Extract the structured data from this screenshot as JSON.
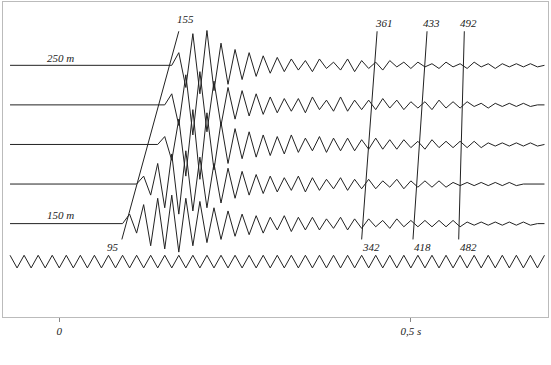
{
  "chart_data": {
    "type": "line",
    "x": [
      -0.07,
      -0.06,
      -0.05,
      -0.04,
      -0.03,
      -0.02,
      -0.01,
      0,
      0.01,
      0.02,
      0.03,
      0.04,
      0.05,
      0.06,
      0.07,
      0.08,
      0.09,
      0.1,
      0.11,
      0.12,
      0.13,
      0.14,
      0.15,
      0.16,
      0.17,
      0.18,
      0.19,
      0.2,
      0.21,
      0.22,
      0.23,
      0.24,
      0.25,
      0.26,
      0.27,
      0.28,
      0.29,
      0.3,
      0.31,
      0.32,
      0.33,
      0.34,
      0.35,
      0.36,
      0.37,
      0.38,
      0.39,
      0.4,
      0.41,
      0.42,
      0.43,
      0.44,
      0.45,
      0.46,
      0.47,
      0.48,
      0.49,
      0.5,
      0.51,
      0.52,
      0.53,
      0.54,
      0.55,
      0.56,
      0.57,
      0.58,
      0.59,
      0.6,
      0.61,
      0.62,
      0.63,
      0.64,
      0.65,
      0.66,
      0.67,
      0.68,
      0.69
    ],
    "series": [
      {
        "color": "#222222",
        "line_style": "solid",
        "values": [
          250,
          250,
          250,
          250,
          250,
          250,
          250,
          250,
          250,
          250,
          250,
          250,
          250,
          250,
          250,
          250,
          250,
          250,
          250,
          250,
          250,
          250,
          250,
          250,
          258,
          236,
          270,
          232,
          272,
          234,
          264,
          238,
          260,
          241,
          258,
          243,
          256,
          245,
          255,
          246,
          254,
          247,
          253,
          246,
          254,
          248,
          252,
          247,
          254,
          246,
          253,
          248,
          252,
          247,
          253,
          249,
          252,
          248,
          252,
          249,
          251,
          248,
          252,
          249,
          251,
          248,
          252,
          249,
          251,
          248,
          251,
          249,
          251,
          249,
          251,
          249,
          250
        ]
      },
      {
        "color": "#222222",
        "line_style": "solid",
        "values": [
          225,
          225,
          225,
          225,
          225,
          225,
          225,
          225,
          225,
          225,
          225,
          225,
          225,
          225,
          225,
          225,
          225,
          225,
          225,
          225,
          225,
          225,
          225,
          232,
          212,
          244,
          206,
          246,
          208,
          240,
          212,
          236,
          216,
          234,
          218,
          232,
          219,
          230,
          220,
          229,
          221,
          229,
          220,
          230,
          222,
          228,
          221,
          230,
          221,
          228,
          222,
          228,
          222,
          229,
          223,
          228,
          222,
          227,
          223,
          227,
          222,
          228,
          223,
          227,
          223,
          227,
          224,
          226,
          223,
          226,
          224,
          226,
          224,
          226,
          224,
          225,
          225
        ]
      },
      {
        "color": "#222222",
        "line_style": "solid",
        "values": [
          200,
          200,
          200,
          200,
          200,
          200,
          200,
          200,
          200,
          200,
          200,
          200,
          200,
          200,
          200,
          200,
          200,
          200,
          200,
          200,
          200,
          200,
          205,
          190,
          216,
          180,
          222,
          178,
          220,
          184,
          214,
          188,
          210,
          191,
          208,
          192,
          206,
          193,
          205,
          194,
          206,
          195,
          204,
          196,
          205,
          195,
          204,
          196,
          204,
          196,
          203,
          197,
          204,
          197,
          203,
          197,
          203,
          198,
          202,
          197,
          203,
          198,
          202,
          198,
          202,
          198,
          202,
          198,
          201,
          199,
          201,
          199,
          201,
          199,
          201,
          199,
          200
        ]
      },
      {
        "color": "#222222",
        "line_style": "solid",
        "values": [
          175,
          175,
          175,
          175,
          175,
          175,
          175,
          175,
          175,
          175,
          175,
          175,
          175,
          175,
          175,
          175,
          175,
          175,
          175,
          180,
          168,
          188,
          160,
          194,
          156,
          196,
          158,
          192,
          160,
          188,
          163,
          185,
          166,
          183,
          168,
          181,
          169,
          180,
          170,
          179,
          171,
          180,
          170,
          179,
          171,
          178,
          172,
          179,
          171,
          178,
          172,
          178,
          172,
          177,
          173,
          178,
          172,
          177,
          173,
          177,
          173,
          177,
          173,
          176,
          174,
          176,
          174,
          176,
          174,
          176,
          174,
          176,
          174,
          175,
          175,
          175,
          175
        ]
      },
      {
        "color": "#222222",
        "line_style": "solid",
        "values": [
          150,
          150,
          150,
          150,
          150,
          150,
          150,
          150,
          150,
          150,
          150,
          150,
          150,
          150,
          150,
          150,
          150,
          156,
          144,
          162,
          136,
          166,
          134,
          168,
          132,
          166,
          136,
          164,
          138,
          160,
          140,
          158,
          142,
          156,
          143,
          155,
          144,
          154,
          146,
          155,
          145,
          154,
          146,
          154,
          146,
          153,
          147,
          154,
          146,
          153,
          147,
          153,
          148,
          152,
          147,
          153,
          148,
          152,
          148,
          152,
          148,
          152,
          148,
          152,
          148,
          151,
          149,
          151,
          149,
          151,
          149,
          151,
          149,
          151,
          149,
          150,
          150
        ]
      },
      {
        "color": "#222222",
        "line_style": "solid",
        "values": [
          130,
          122,
          130,
          122,
          130,
          122,
          130,
          122,
          130,
          122,
          130,
          122,
          130,
          122,
          130,
          122,
          130,
          122,
          130,
          122,
          130,
          122,
          130,
          122,
          130,
          122,
          130,
          122,
          130,
          122,
          130,
          122,
          130,
          122,
          130,
          122,
          130,
          122,
          130,
          122,
          130,
          122,
          130,
          122,
          130,
          122,
          130,
          122,
          130,
          122,
          130,
          122,
          130,
          122,
          130,
          122,
          130,
          122,
          130,
          122,
          130,
          122,
          130,
          122,
          130,
          122,
          130,
          122,
          130,
          122,
          130,
          122,
          130,
          122,
          130,
          122,
          130
        ]
      }
    ],
    "xlim": [
      -0.08,
      0.695
    ],
    "xticks": [
      0,
      {
        "value": 0.5,
        "label": "0,5 s"
      }
    ],
    "ylim": [
      91,
      290
    ],
    "tick_labels": "x",
    "grid": false,
    "lines": [
      {
        "x": [
          0.089,
          0.17
        ],
        "y": [
          140,
          271.5
        ]
      },
      {
        "x": [
          0.43,
          0.452
        ],
        "y": [
          140,
          271.5
        ]
      },
      {
        "x": [
          0.503,
          0.523
        ],
        "y": [
          140,
          271.5
        ]
      },
      {
        "x": [
          0.568,
          0.576
        ],
        "y": [
          140,
          271.5
        ]
      }
    ],
    "annotations": [
      {
        "text": "250 m",
        "x": 0.0014,
        "y": 254.5
      },
      {
        "text": "150 m",
        "x": 0.0014,
        "y": 155.3
      },
      {
        "text": "155",
        "x": 0.18,
        "y": 279
      },
      {
        "text": "95",
        "x": 0.077,
        "y": 135
      },
      {
        "text": "361",
        "x": 0.462,
        "y": 277
      },
      {
        "text": "433",
        "x": 0.53,
        "y": 277
      },
      {
        "text": "492",
        "x": 0.582,
        "y": 277
      },
      {
        "text": "342",
        "x": 0.444,
        "y": 135
      },
      {
        "text": "418",
        "x": 0.517,
        "y": 135
      },
      {
        "text": "482",
        "x": 0.582,
        "y": 135
      }
    ]
  }
}
